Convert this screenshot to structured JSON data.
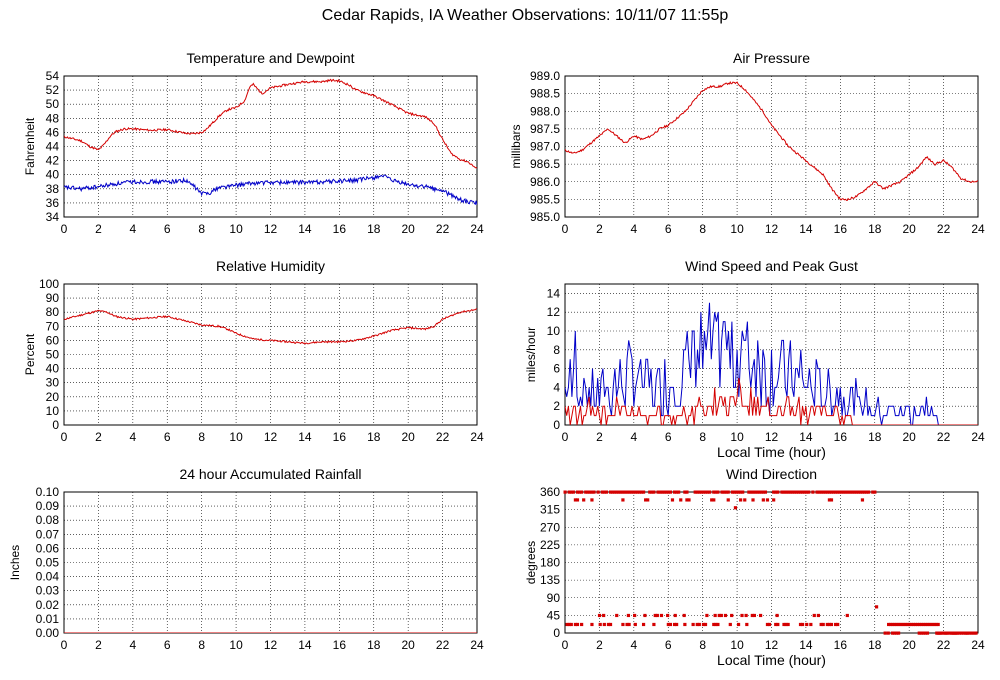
{
  "title": "Cedar Rapids, IA Weather Observations: 10/11/07 11:55p",
  "colors": {
    "red": "#d40000",
    "blue": "#0000c8",
    "grid": "#000000"
  },
  "chart_data": [
    {
      "id": "temp",
      "type": "line",
      "title": "Temperature and Dewpoint",
      "xlabel": "",
      "ylabel": "Fahrenheit",
      "xlim": [
        0,
        24
      ],
      "ylim": [
        34,
        54
      ],
      "xticks": [
        0,
        2,
        4,
        6,
        8,
        10,
        12,
        14,
        16,
        18,
        20,
        22,
        24
      ],
      "yticks": [
        34,
        36,
        38,
        40,
        42,
        44,
        46,
        48,
        50,
        52,
        54
      ],
      "series": [
        {
          "color": "#d40000",
          "noise": 0.15,
          "x": [
            0,
            1,
            1.5,
            2,
            2.3,
            2.7,
            3,
            3.5,
            4,
            5,
            6,
            7,
            7.5,
            8,
            8.3,
            8.7,
            9,
            9.5,
            10,
            10.5,
            10.8,
            11,
            11.5,
            12,
            13,
            14,
            15,
            15.5,
            16,
            16.5,
            17,
            18,
            19,
            20,
            21,
            21.5,
            22,
            22.5,
            23,
            23.5,
            24
          ],
          "y": [
            45.4,
            44.8,
            44.0,
            43.5,
            44.2,
            45.5,
            46.1,
            46.5,
            46.5,
            46.3,
            46.4,
            45.9,
            45.8,
            46.0,
            46.5,
            47.5,
            48.3,
            49.2,
            49.5,
            50.5,
            52.5,
            52.8,
            51.5,
            52.3,
            52.8,
            53.2,
            53.2,
            53.4,
            53.3,
            52.8,
            52.0,
            51.2,
            50.0,
            48.7,
            48.2,
            47.3,
            45.0,
            43.0,
            42.2,
            41.8,
            40.8
          ]
        },
        {
          "color": "#0000c8",
          "noise": 0.3,
          "x": [
            0,
            1,
            2,
            3,
            4,
            5,
            6,
            7,
            7.5,
            8,
            8.5,
            9,
            10,
            11,
            12,
            13,
            14,
            15,
            16,
            17,
            18,
            18.5,
            19,
            20,
            21,
            22,
            23,
            23.5,
            24
          ],
          "y": [
            38.2,
            38.0,
            38.3,
            38.7,
            39.0,
            39.0,
            39.0,
            39.2,
            38.5,
            37.3,
            37.5,
            38.2,
            38.5,
            38.8,
            38.9,
            38.9,
            38.9,
            39.0,
            39.1,
            39.2,
            39.6,
            39.9,
            39.2,
            38.6,
            38.3,
            37.7,
            36.5,
            36.1,
            36.0
          ]
        }
      ]
    },
    {
      "id": "pressure",
      "type": "line",
      "title": "Air Pressure",
      "xlabel": "",
      "ylabel": "millibars",
      "xlim": [
        0,
        24
      ],
      "ylim": [
        985.0,
        989.0
      ],
      "xticks": [
        0,
        2,
        4,
        6,
        8,
        10,
        12,
        14,
        16,
        18,
        20,
        22,
        24
      ],
      "yticks": [
        985.0,
        985.5,
        986.0,
        986.5,
        987.0,
        987.5,
        988.0,
        988.5,
        989.0
      ],
      "ytick_decimals": 1,
      "series": [
        {
          "color": "#d40000",
          "noise": 0.03,
          "x": [
            0,
            0.5,
            1,
            1.5,
            2,
            2.5,
            3,
            3.5,
            4,
            4.5,
            5,
            5.5,
            6,
            6.5,
            7,
            7.5,
            8,
            8.5,
            9,
            9.5,
            10,
            10.5,
            11,
            11.5,
            12,
            13,
            14,
            15,
            15.5,
            16,
            16.5,
            17,
            17.5,
            18,
            18.5,
            19,
            19.5,
            20,
            20.5,
            21,
            21.5,
            22,
            22.5,
            23,
            23.5,
            24
          ],
          "y": [
            986.9,
            986.8,
            986.9,
            987.1,
            987.3,
            987.5,
            987.3,
            987.1,
            987.3,
            987.2,
            987.3,
            987.5,
            987.6,
            987.8,
            988.0,
            988.3,
            988.6,
            988.7,
            988.7,
            988.8,
            988.8,
            988.6,
            988.3,
            988.0,
            987.6,
            987.0,
            986.6,
            986.2,
            985.8,
            985.5,
            985.5,
            985.6,
            985.8,
            986.0,
            985.8,
            985.9,
            986.0,
            986.2,
            986.4,
            986.7,
            986.5,
            986.6,
            986.4,
            986.1,
            986.0,
            986.0
          ]
        }
      ]
    },
    {
      "id": "humidity",
      "type": "line",
      "title": "Relative Humidity",
      "xlabel": "",
      "ylabel": "Percent",
      "xlim": [
        0,
        24
      ],
      "ylim": [
        0,
        100
      ],
      "xticks": [
        0,
        2,
        4,
        6,
        8,
        10,
        12,
        14,
        16,
        18,
        20,
        22,
        24
      ],
      "yticks": [
        0,
        10,
        20,
        30,
        40,
        50,
        60,
        70,
        80,
        90,
        100
      ],
      "series": [
        {
          "color": "#d40000",
          "noise": 0.6,
          "x": [
            0,
            1,
            2,
            2.5,
            3,
            4,
            5,
            6,
            7,
            8,
            9,
            9.5,
            10,
            10.5,
            11,
            12,
            13,
            14,
            15,
            16,
            17,
            18,
            19,
            20,
            21,
            21.5,
            22,
            23,
            24
          ],
          "y": [
            75,
            78,
            81,
            80,
            77,
            75,
            76,
            77,
            74,
            71,
            70,
            68,
            65,
            63,
            61,
            60,
            59,
            58,
            59,
            59,
            60,
            63,
            67,
            69,
            68,
            70,
            75,
            80,
            82
          ]
        }
      ]
    },
    {
      "id": "wind",
      "type": "line",
      "title": "Wind Speed and Peak Gust",
      "xlabel": "Local Time (hour)",
      "ylabel": "miles/hour",
      "xlim": [
        0,
        24
      ],
      "ylim": [
        0,
        15
      ],
      "xticks": [
        0,
        2,
        4,
        6,
        8,
        10,
        12,
        14,
        16,
        18,
        20,
        22,
        24
      ],
      "yticks": [
        0,
        2,
        4,
        6,
        8,
        10,
        12,
        14
      ],
      "series": [
        {
          "color": "#0000c8",
          "step": 0.1,
          "seed": 7,
          "spikes": [
            [
              0.6,
              10
            ],
            [
              3.7,
              9
            ],
            [
              7.5,
              10
            ],
            [
              8.1,
              10
            ],
            [
              8.8,
              11
            ],
            [
              9.2,
              11
            ],
            [
              9.7,
              11
            ],
            [
              10.3,
              10
            ],
            [
              11.2,
              9
            ],
            [
              13.7,
              8
            ]
          ],
          "x": [
            0,
            1,
            2,
            3,
            4,
            5,
            6,
            7,
            8,
            9,
            10,
            11,
            12,
            13,
            14,
            15,
            16,
            17,
            18,
            19,
            20,
            21,
            21.6,
            22,
            24
          ],
          "y": [
            4.5,
            3.5,
            3.5,
            4.5,
            5.5,
            4.0,
            4.5,
            6.0,
            7.5,
            8.0,
            8.0,
            6.5,
            5.5,
            5.5,
            4.5,
            3.5,
            3.5,
            2.5,
            2.0,
            1.5,
            1.5,
            1.5,
            0.5,
            0,
            0
          ]
        },
        {
          "color": "#d40000",
          "step": 0.1,
          "seed": 13,
          "spikes": [],
          "x": [
            0,
            3,
            4,
            5,
            6,
            7,
            8,
            9,
            10,
            11,
            12,
            13,
            14,
            15,
            16,
            16.5,
            17,
            24
          ],
          "y": [
            1.5,
            1.5,
            1.0,
            0.8,
            1.0,
            1.5,
            1.8,
            2.2,
            2.5,
            2.0,
            1.8,
            1.5,
            1.5,
            1.2,
            0.8,
            0.2,
            0,
            0
          ]
        }
      ]
    },
    {
      "id": "rain",
      "type": "line",
      "title": "24 hour Accumulated Rainfall",
      "xlabel": "",
      "ylabel": "Inches",
      "xlim": [
        0,
        24
      ],
      "ylim": [
        0,
        0.1
      ],
      "xticks": [
        0,
        2,
        4,
        6,
        8,
        10,
        12,
        14,
        16,
        18,
        20,
        22,
        24
      ],
      "yticks": [
        0,
        0.01,
        0.02,
        0.03,
        0.04,
        0.05,
        0.06,
        0.07,
        0.08,
        0.09,
        0.1
      ],
      "ytick_decimals": 2,
      "series": [
        {
          "color": "#d40000",
          "noise": 0,
          "x": [
            0,
            24
          ],
          "y": [
            0,
            0
          ]
        }
      ]
    },
    {
      "id": "direction",
      "type": "scatter",
      "title": "Wind Direction",
      "xlabel": "Local Time (hour)",
      "ylabel": "degrees",
      "xlim": [
        0,
        24
      ],
      "ylim": [
        0,
        360
      ],
      "xticks": [
        0,
        2,
        4,
        6,
        8,
        10,
        12,
        14,
        16,
        18,
        20,
        22,
        24
      ],
      "yticks": [
        0,
        45,
        90,
        135,
        180,
        225,
        270,
        315,
        360
      ],
      "series": [
        {
          "color": "#d40000",
          "bands": [
            {
              "y": 360,
              "from": 0,
              "to": 18,
              "density": 0.82,
              "seed": 3
            },
            {
              "y": 340,
              "from": 0,
              "to": 17.6,
              "density": 0.18,
              "seed": 5
            },
            {
              "y": 45,
              "from": 1.4,
              "to": 16.5,
              "density": 0.2,
              "seed": 9
            },
            {
              "y": 22,
              "from": 0,
              "to": 17,
              "density": 0.38,
              "seed": 11
            },
            {
              "y": 22,
              "from": 18.8,
              "to": 21.8,
              "density": 0.95,
              "seed": 17
            },
            {
              "y": 0,
              "from": 18.3,
              "to": 24,
              "density": 0.3,
              "seed": 19
            },
            {
              "y": 0,
              "from": 21.6,
              "to": 24,
              "density": 1.0,
              "seed": 23
            }
          ],
          "points": [
            [
              9.9,
              320
            ],
            [
              18.1,
              67
            ],
            [
              3.0,
              45
            ],
            [
              6.4,
              45
            ],
            [
              18.6,
              0
            ]
          ]
        }
      ]
    }
  ]
}
